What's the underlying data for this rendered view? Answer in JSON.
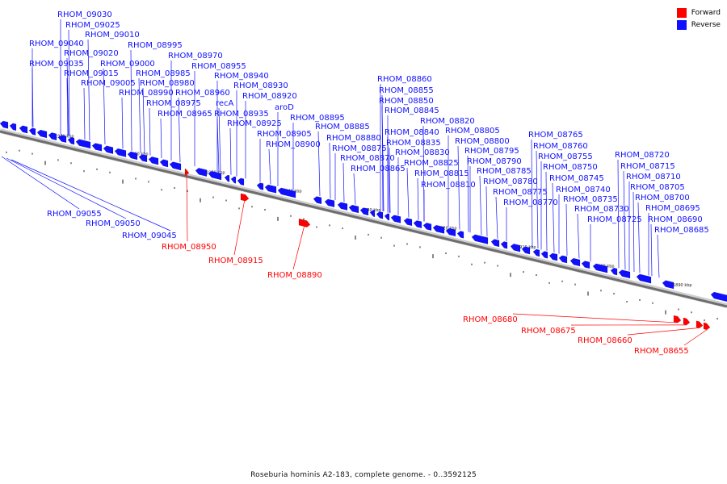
{
  "caption": "Roseburia hominis A2-183, complete genome. - 0..3592125",
  "legend": [
    {
      "label": "Forward",
      "color": "#ff0000"
    },
    {
      "label": "Reverse",
      "color": "#1010ff"
    }
  ],
  "colors": {
    "forward": "#ff0000",
    "reverse": "#1010ff",
    "axis": "#777777"
  },
  "ticks": [
    "1970 kbp",
    "1960 kbp",
    "1950 kbp",
    "1940 kbp",
    "1930 kbp",
    "1920 kbp",
    "1910 kbp",
    "1900 kbp",
    "1890 kbp"
  ],
  "reverse_labels_upper": [
    "RHOM_09030",
    "RHOM_09025",
    "RHOM_09010",
    "RHOM_09040",
    "RHOM_08995",
    "RHOM_09020",
    "RHOM_08970",
    "RHOM_09035",
    "RHOM_09000",
    "RHOM_08955",
    "RHOM_09015",
    "RHOM_08985",
    "RHOM_08940",
    "RHOM_09005",
    "RHOM_08980",
    "RHOM_08930",
    "RHOM_08990",
    "RHOM_08960",
    "RHOM_08920",
    "RHOM_08975",
    "recA",
    "aroD",
    "RHOM_08965",
    "RHOM_08935",
    "RHOM_08895",
    "RHOM_08925",
    "RHOM_08885",
    "RHOM_08905",
    "RHOM_08880",
    "RHOM_08900",
    "RHOM_08875",
    "RHOM_08870",
    "RHOM_08865",
    "RHOM_08860",
    "RHOM_08855",
    "RHOM_08850",
    "RHOM_08845",
    "RHOM_08820",
    "RHOM_08840",
    "RHOM_08805",
    "RHOM_08835",
    "RHOM_08800",
    "RHOM_08830",
    "RHOM_08795",
    "RHOM_08825",
    "RHOM_08790",
    "RHOM_08815",
    "RHOM_08785",
    "RHOM_08810",
    "RHOM_08780",
    "RHOM_08775",
    "RHOM_08770",
    "RHOM_08765",
    "RHOM_08760",
    "RHOM_08755",
    "RHOM_08750",
    "RHOM_08745",
    "RHOM_08740",
    "RHOM_08735",
    "RHOM_08730",
    "RHOM_08725",
    "RHOM_08720",
    "RHOM_08715",
    "RHOM_08710",
    "RHOM_08705",
    "RHOM_08700",
    "RHOM_08695",
    "RHOM_08690",
    "RHOM_08685"
  ],
  "reverse_labels_lower": [
    "RHOM_09055",
    "RHOM_09050",
    "RHOM_09045"
  ],
  "forward_labels": [
    "RHOM_08950",
    "RHOM_08915",
    "RHOM_08890",
    "RHOM_08680",
    "RHOM_08675",
    "RHOM_08660",
    "RHOM_08655"
  ]
}
